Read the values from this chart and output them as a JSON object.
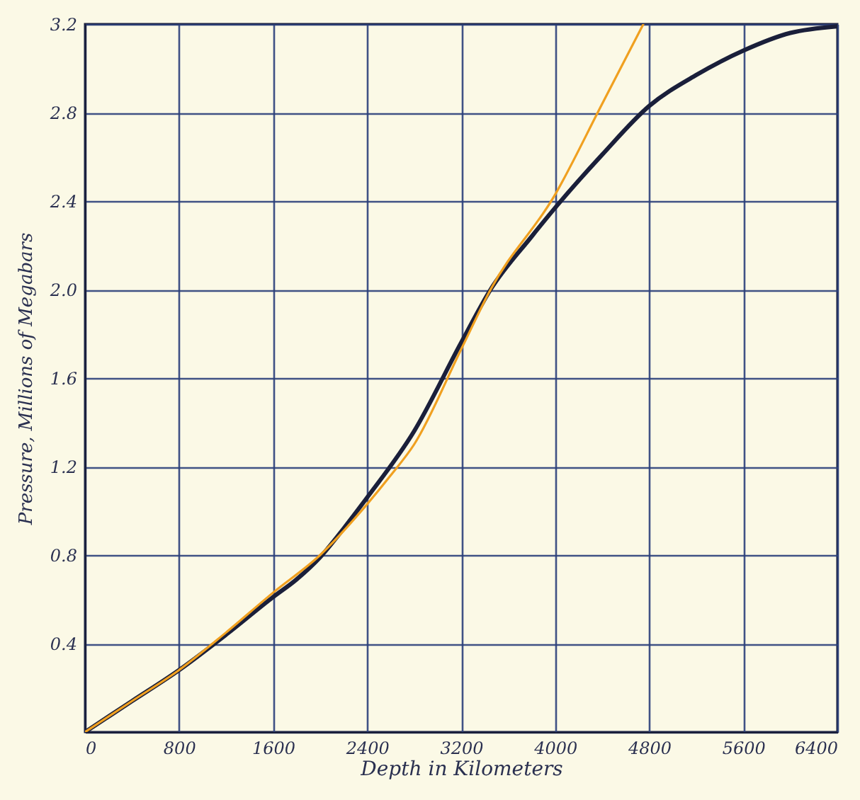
{
  "chart_data": {
    "type": "line",
    "xlabel": "Depth in Kilometers",
    "ylabel": "Pressure, Millions of Megabars",
    "xlim": [
      0,
      6400
    ],
    "ylim": [
      0,
      3.2
    ],
    "xticks": [
      0,
      800,
      1600,
      2400,
      3200,
      4000,
      4800,
      5600,
      6400
    ],
    "yticks": [
      {
        "value": 0,
        "label": null
      },
      0.4,
      0.8,
      1.2,
      1.6,
      {
        "value": 2,
        "label": "2.0"
      },
      2.4,
      2.8,
      3.2
    ],
    "grid": true,
    "line_style": "solid",
    "series": [
      {
        "color": "#1a1f3a",
        "x": [
          0,
          400,
          800,
          1200,
          1600,
          1800,
          2000,
          2200,
          2400,
          2800,
          3200,
          3450,
          3800,
          4000,
          4400,
          4800,
          5200,
          5600,
          6000,
          6400
        ],
        "values": [
          0,
          0.14,
          0.28,
          0.44,
          0.61,
          0.69,
          0.79,
          0.92,
          1.06,
          1.36,
          1.76,
          2.0,
          2.24,
          2.37,
          2.61,
          2.83,
          2.97,
          3.08,
          3.16,
          3.19
        ]
      },
      {
        "color": "#f0a020",
        "x": [
          0,
          400,
          800,
          1200,
          1600,
          2000,
          2400,
          2600,
          2800,
          3200,
          3450,
          4000,
          4400,
          4750
        ],
        "values": [
          0,
          0.14,
          0.28,
          0.45,
          0.63,
          0.8,
          1.03,
          1.16,
          1.3,
          1.73,
          2.0,
          2.43,
          2.84,
          3.2
        ]
      }
    ]
  }
}
